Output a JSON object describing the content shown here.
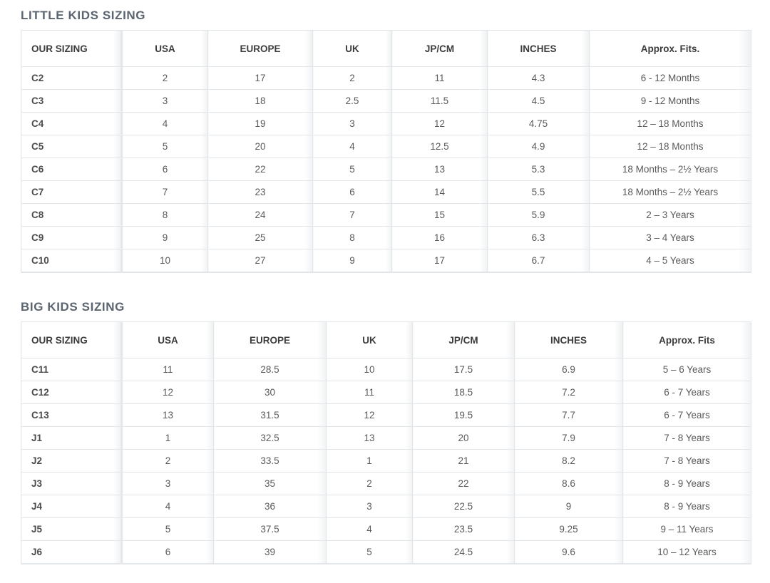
{
  "little": {
    "title": "LITTLE KIDS SIZING",
    "headers": [
      "OUR SIZING",
      "USA",
      "EUROPE",
      "UK",
      "JP/CM",
      "INCHES",
      "Approx. Fits."
    ],
    "rows": [
      [
        "C2",
        "2",
        "17",
        "2",
        "11",
        "4.3",
        "6 - 12 Months"
      ],
      [
        "C3",
        "3",
        "18",
        "2.5",
        "11.5",
        "4.5",
        "9 - 12 Months"
      ],
      [
        "C4",
        "4",
        "19",
        "3",
        "12",
        "4.75",
        "12 – 18 Months"
      ],
      [
        "C5",
        "5",
        "20",
        "4",
        "12.5",
        "4.9",
        "12 – 18 Months"
      ],
      [
        "C6",
        "6",
        "22",
        "5",
        "13",
        "5.3",
        "18 Months – 2½ Years"
      ],
      [
        "C7",
        "7",
        "23",
        "6",
        "14",
        "5.5",
        "18 Months – 2½ Years"
      ],
      [
        "C8",
        "8",
        "24",
        "7",
        "15",
        "5.9",
        "2 – 3 Years"
      ],
      [
        "C9",
        "9",
        "25",
        "8",
        "16",
        "6.3",
        "3 – 4 Years"
      ],
      [
        "C10",
        "10",
        "27",
        "9",
        "17",
        "6.7",
        "4 – 5 Years"
      ]
    ]
  },
  "big": {
    "title": "BIG KIDS SIZING",
    "headers": [
      "OUR SIZING",
      "USA",
      "EUROPE",
      "UK",
      "JP/CM",
      "INCHES",
      "Approx. Fits"
    ],
    "rows": [
      [
        "C11",
        "11",
        "28.5",
        "10",
        "17.5",
        "6.9",
        "5 – 6 Years"
      ],
      [
        "C12",
        "12",
        "30",
        "11",
        "18.5",
        "7.2",
        "6 - 7 Years"
      ],
      [
        "C13",
        "13",
        "31.5",
        "12",
        "19.5",
        "7.7",
        "6 - 7 Years"
      ],
      [
        "J1",
        "1",
        "32.5",
        "13",
        "20",
        "7.9",
        "7 - 8 Years"
      ],
      [
        "J2",
        "2",
        "33.5",
        "1",
        "21",
        "8.2",
        "7 - 8 Years"
      ],
      [
        "J3",
        "3",
        "35",
        "2",
        "22",
        "8.6",
        "8 - 9 Years"
      ],
      [
        "J4",
        "4",
        "36",
        "3",
        "22.5",
        "9",
        "8 - 9 Years"
      ],
      [
        "J5",
        "5",
        "37.5",
        "4",
        "23.5",
        "9.25",
        "9 – 11 Years"
      ],
      [
        "J6",
        "6",
        "39",
        "5",
        "24.5",
        "9.6",
        "10 – 12 Years"
      ]
    ]
  }
}
